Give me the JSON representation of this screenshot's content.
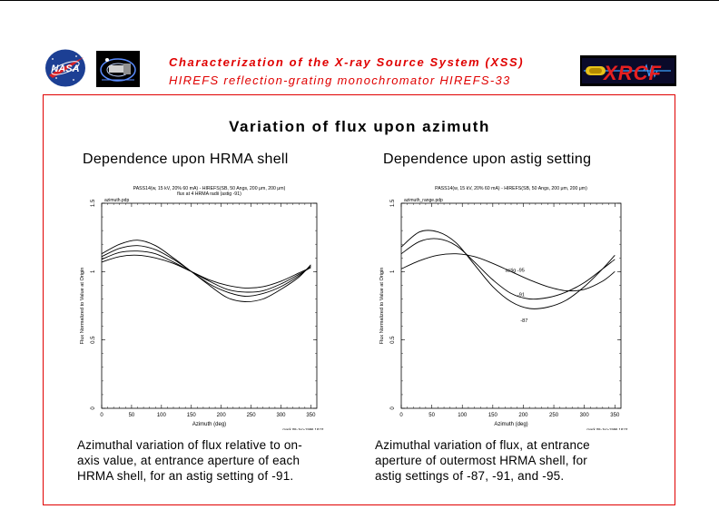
{
  "header": {
    "line1": "Characterization of the X-ray Source System (XSS)",
    "line2": "HIREFS reflection-grating monochromator   HIREFS-33",
    "accent_color": "#e00000",
    "logos": {
      "nasa": "NASA",
      "xrcf": "XRCF"
    }
  },
  "slide": {
    "title": "Variation of flux upon azimuth",
    "left": {
      "subtitle": "Dependence upon HRMA shell",
      "caption": [
        "Azimuthal variation of flux relative to on-",
        "axis value, at entrance aperture of each",
        "HRMA shell, for an astig setting of -91."
      ]
    },
    "right": {
      "subtitle": "Dependence upon astig setting",
      "caption": [
        "Azimuthal variation of flux, at entrance",
        "aperture of outermost HRMA shell, for",
        "astig settings of -87, -91, and -95."
      ]
    }
  },
  "chart_data": [
    {
      "type": "line",
      "title": "PASS14(w, 15 kV, 20% 60 mA) - HIREFS(SB, 50 Angs, 200 μm, 200 μm)",
      "subtitle": "flux at 4 HRMA radii (astig -91)",
      "file_label": "azimuth.pdp",
      "xlabel": "Azimuth (deg)",
      "ylabel": "Flux Normalized to Value at Origin",
      "footer": "mark 08-Jun-1996 18:01",
      "xlim": [
        0,
        360
      ],
      "ylim": [
        0,
        1.5
      ],
      "xticks": [
        "0",
        "50",
        "100",
        "150",
        "200",
        "250",
        "300",
        "350"
      ],
      "yticks": [
        "0",
        "0.5",
        "1",
        "1.5"
      ],
      "x": [
        0,
        30,
        60,
        90,
        120,
        150,
        180,
        210,
        240,
        270,
        300,
        330,
        350
      ],
      "series": [
        {
          "values": [
            1.13,
            1.2,
            1.23,
            1.19,
            1.1,
            1.0,
            0.9,
            0.81,
            0.78,
            0.8,
            0.87,
            0.96,
            1.05
          ]
        },
        {
          "values": [
            1.11,
            1.17,
            1.19,
            1.16,
            1.09,
            1.0,
            0.91,
            0.85,
            0.82,
            0.84,
            0.89,
            0.97,
            1.04
          ]
        },
        {
          "values": [
            1.09,
            1.14,
            1.15,
            1.13,
            1.07,
            1.0,
            0.93,
            0.87,
            0.85,
            0.86,
            0.91,
            0.98,
            1.03
          ]
        },
        {
          "values": [
            1.07,
            1.11,
            1.12,
            1.1,
            1.06,
            1.0,
            0.94,
            0.9,
            0.88,
            0.89,
            0.93,
            0.99,
            1.03
          ]
        }
      ]
    },
    {
      "type": "line",
      "title": "PASS14(w, 15 kV, 20% 60 mA) - HIREFS(SB, 50 Angs, 200 μm, 200 μm)",
      "file_label": "azimuth_range.pdp",
      "xlabel": "Azimuth (deg)",
      "ylabel": "Flux Normalized to Value at Origin",
      "footer": "mark 08-Jun-1996 18:01",
      "xlim": [
        0,
        360
      ],
      "ylim": [
        0,
        1.5
      ],
      "xticks": [
        "0",
        "50",
        "100",
        "150",
        "200",
        "250",
        "300",
        "350"
      ],
      "yticks": [
        "0",
        "0.5",
        "1",
        "1.5"
      ],
      "x": [
        0,
        30,
        60,
        90,
        120,
        150,
        180,
        210,
        240,
        270,
        300,
        330,
        350
      ],
      "series": [
        {
          "name": "astig -95",
          "values": [
            1.02,
            1.08,
            1.12,
            1.13,
            1.11,
            1.06,
            1.0,
            0.94,
            0.89,
            0.86,
            0.87,
            0.93,
            1.0
          ]
        },
        {
          "name": "-91",
          "values": [
            1.13,
            1.22,
            1.24,
            1.19,
            1.07,
            0.94,
            0.84,
            0.8,
            0.81,
            0.85,
            0.92,
            1.02,
            1.09
          ]
        },
        {
          "name": "-87",
          "values": [
            1.18,
            1.29,
            1.29,
            1.21,
            1.05,
            0.89,
            0.78,
            0.73,
            0.74,
            0.79,
            0.89,
            1.02,
            1.12
          ]
        }
      ]
    }
  ]
}
